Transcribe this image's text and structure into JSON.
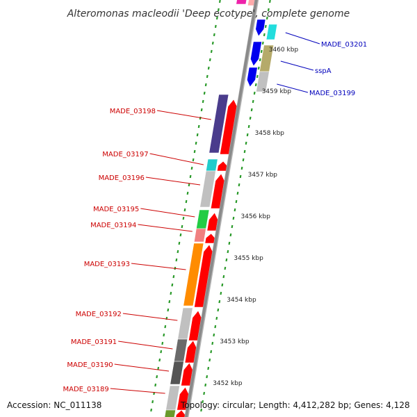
{
  "title": "Alteromonas macleodii 'Deep ecotype', complete genome",
  "footer": {
    "accession": "Accession: NC_011138",
    "topology": "Topology: circular; Length: 4,412,282 bp; Genes: 4,128"
  },
  "colors": {
    "backbone": "#8a8a8a",
    "tick": "#2a9a2a",
    "left_label": "#cc0000",
    "right_label": "#0000bb",
    "forward_gene": "#ff0000"
  },
  "ticks": [
    {
      "label": "3452 kbp"
    },
    {
      "label": "3453 kbp"
    },
    {
      "label": "3454 kbp"
    },
    {
      "label": "3455 kbp"
    },
    {
      "label": "3456 kbp"
    },
    {
      "label": "3457 kbp"
    },
    {
      "label": "3458 kbp"
    },
    {
      "label": "3459 kbp"
    },
    {
      "label": "3460 kbp"
    }
  ],
  "left_labels": [
    {
      "text": "MADE_03198"
    },
    {
      "text": "MADE_03197"
    },
    {
      "text": "MADE_03196"
    },
    {
      "text": "MADE_03195"
    },
    {
      "text": "MADE_03194"
    },
    {
      "text": "MADE_03193"
    },
    {
      "text": "MADE_03192"
    },
    {
      "text": "MADE_03191"
    },
    {
      "text": "MADE_03190"
    },
    {
      "text": "MADE_03189"
    }
  ],
  "right_labels": [
    {
      "text": "MADE_03201"
    },
    {
      "text": "sspA"
    },
    {
      "text": "MADE_03199"
    }
  ]
}
